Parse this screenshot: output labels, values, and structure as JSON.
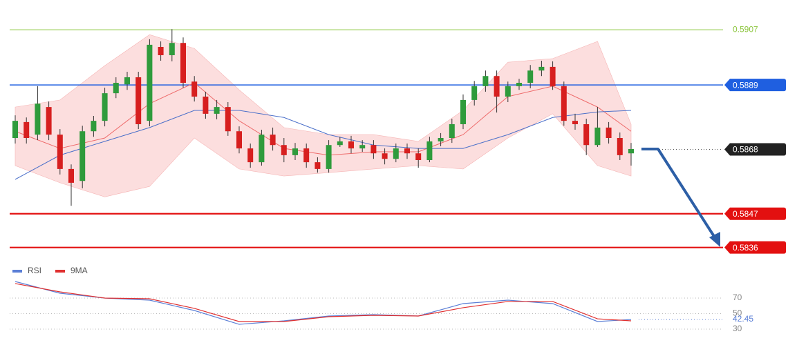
{
  "chart_data": [
    {
      "type": "candlestick",
      "categories": [
        null,
        null,
        null,
        null,
        null,
        null,
        null,
        null,
        null,
        null,
        null,
        null,
        null,
        null,
        null,
        null,
        null,
        null,
        null,
        null,
        null,
        null,
        null,
        null,
        null,
        null,
        null,
        null,
        null,
        null,
        null,
        null,
        null,
        null,
        null,
        null,
        null,
        null,
        null,
        null,
        null,
        null,
        null,
        null,
        null,
        null,
        null,
        null,
        null,
        null,
        null,
        null,
        null,
        null,
        null,
        null
      ],
      "open": [
        0.58717,
        0.58769,
        0.58728,
        0.58818,
        0.58728,
        0.58616,
        0.58577,
        0.58739,
        0.58773,
        0.58863,
        0.58892,
        0.58915,
        0.58773,
        0.59014,
        0.58987,
        0.59027,
        0.58901,
        0.58852,
        0.58796,
        0.58818,
        0.58739,
        0.58683,
        0.58638,
        0.58728,
        0.58694,
        0.58661,
        0.58683,
        0.58638,
        0.58616,
        0.58694,
        0.58706,
        0.58683,
        0.58694,
        0.58667,
        0.58649,
        0.58683,
        0.58667,
        0.58645,
        0.58706,
        0.58717,
        0.58762,
        0.58841,
        0.58886,
        0.58919,
        0.58852,
        0.58886,
        0.58897,
        0.58937,
        0.58949,
        0.58886,
        0.58773,
        0.58762,
        0.58694,
        0.58751,
        0.58717,
        0.58667
      ],
      "high": [
        0.58791,
        0.58784,
        0.58886,
        0.58836,
        0.58746,
        0.58631,
        0.58757,
        0.58789,
        0.58881,
        0.58915,
        0.58933,
        0.58933,
        0.59039,
        0.59032,
        0.59072,
        0.59045,
        0.58919,
        0.58868,
        0.58841,
        0.58834,
        0.58755,
        0.58699,
        0.58744,
        0.58751,
        0.58717,
        0.58701,
        0.58699,
        0.58654,
        0.5871,
        0.58721,
        0.58724,
        0.5871,
        0.5871,
        0.58683,
        0.58699,
        0.58699,
        0.58683,
        0.58721,
        0.58733,
        0.5878,
        0.58859,
        0.58903,
        0.58937,
        0.58937,
        0.58901,
        0.5891,
        0.58955,
        0.58969,
        0.58967,
        0.58901,
        0.58796,
        0.5878,
        0.58818,
        0.58769,
        0.58735,
        0.58701
      ],
      "low": [
        0.58699,
        0.58699,
        0.5871,
        0.5871,
        0.58598,
        0.58496,
        0.58553,
        0.58721,
        0.58755,
        0.58847,
        0.58874,
        0.58746,
        0.58755,
        0.58969,
        0.58967,
        0.58881,
        0.58836,
        0.5878,
        0.58778,
        0.58724,
        0.58667,
        0.5862,
        0.58627,
        0.58676,
        0.58638,
        0.58645,
        0.5862,
        0.58604,
        0.58604,
        0.58688,
        0.58667,
        0.58672,
        0.58649,
        0.58631,
        0.58638,
        0.58649,
        0.5862,
        0.58638,
        0.5869,
        0.58701,
        0.58746,
        0.58823,
        0.58868,
        0.588,
        0.58834,
        0.58874,
        0.58879,
        0.58919,
        0.58874,
        0.58757,
        0.58744,
        0.58661,
        0.58688,
        0.58699,
        0.58645,
        0.58627
      ],
      "close": [
        0.58773,
        0.58717,
        0.58829,
        0.58728,
        0.58616,
        0.58571,
        0.58739,
        0.58773,
        0.58863,
        0.58897,
        0.58915,
        0.58762,
        0.59021,
        0.58987,
        0.59027,
        0.58897,
        0.58852,
        0.58796,
        0.58818,
        0.58739,
        0.58683,
        0.58638,
        0.58728,
        0.58694,
        0.58661,
        0.58683,
        0.58638,
        0.58616,
        0.58694,
        0.58706,
        0.58683,
        0.58694,
        0.58667,
        0.58649,
        0.58683,
        0.58667,
        0.58645,
        0.58706,
        0.58717,
        0.58762,
        0.58841,
        0.58886,
        0.58919,
        0.58852,
        0.58886,
        0.58897,
        0.58937,
        0.58949,
        0.58886,
        0.58773,
        0.58762,
        0.58694,
        0.58751,
        0.58717,
        0.58661,
        0.58681
      ],
      "up_color": "#2f9b3c",
      "down_color": "#d71f1f",
      "overlay_x": [
        0,
        4,
        8,
        12,
        16,
        20,
        24,
        28,
        32,
        36,
        40,
        44,
        48,
        52,
        55
      ],
      "bands": {
        "color": "#fbd3d3",
        "upper": [
          0.58818,
          0.58841,
          0.58953,
          0.59054,
          0.59009,
          0.58874,
          0.58751,
          0.58728,
          0.58728,
          0.58706,
          0.58807,
          0.58964,
          0.58976,
          0.59032,
          0.58762
        ],
        "lower": [
          0.58627,
          0.58571,
          0.58525,
          0.58559,
          0.58717,
          0.58616,
          0.58593,
          0.58604,
          0.58616,
          0.58627,
          0.58616,
          0.58717,
          0.58796,
          0.58627,
          0.58593
        ]
      },
      "ma_fast": {
        "color": "#ee6b6b",
        "values": [
          0.58739,
          0.58683,
          0.58717,
          0.58829,
          0.58897,
          0.58773,
          0.58683,
          0.58661,
          0.58672,
          0.58672,
          0.58728,
          0.58852,
          0.58886,
          0.58818,
          0.58739
        ]
      },
      "ma_slow": {
        "color": "#4a6fc9",
        "values": [
          0.58582,
          0.58661,
          0.58706,
          0.58751,
          0.58807,
          0.58807,
          0.58784,
          0.58728,
          0.58694,
          0.58683,
          0.58683,
          0.58728,
          0.58784,
          0.58802,
          0.58807
        ]
      },
      "levels": [
        {
          "value": 0.5907,
          "color": "#8dc63f",
          "style": "plain"
        },
        {
          "value": 0.5889,
          "color": "#1f5fe0",
          "style": "badge"
        },
        {
          "value": 0.5868,
          "color": "#222222",
          "style": "dotted"
        },
        {
          "value": 0.5847,
          "color": "#e31010",
          "style": "badge"
        },
        {
          "value": 0.5836,
          "color": "#e31010",
          "style": "badge"
        }
      ],
      "ylim": [
        0.58312,
        0.59167
      ]
    },
    {
      "type": "line",
      "x": [
        0,
        4,
        8,
        12,
        16,
        20,
        24,
        28,
        32,
        36,
        40,
        44,
        48,
        52,
        55
      ],
      "xlim": [
        0,
        55
      ],
      "series": [
        {
          "name": "RSI",
          "color": "#5b7fd6",
          "values": [
            91.3,
            76.2,
            70,
            67.3,
            54,
            36.2,
            40.7,
            46.9,
            48.7,
            46.9,
            62.9,
            67.3,
            62.9,
            39.8,
            42.45
          ]
        },
        {
          "name": "9MA",
          "color": "#e03030",
          "values": [
            88.7,
            78,
            70,
            69.1,
            56.7,
            39.8,
            39.8,
            46,
            47.8,
            46.9,
            57.6,
            65.6,
            65.6,
            43.3,
            40.7
          ]
        }
      ],
      "current": 42.45,
      "ylim": [
        9.6,
        98.4
      ],
      "yticks": [
        70,
        50,
        30
      ],
      "grid": true
    }
  ]
}
